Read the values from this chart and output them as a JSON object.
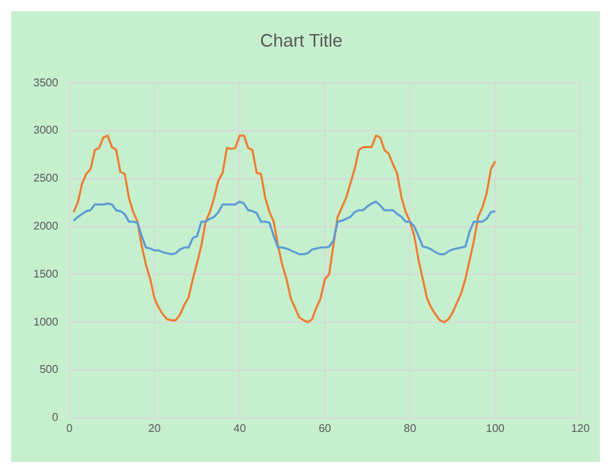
{
  "chart_data": {
    "type": "line",
    "title": "Chart Title",
    "x": [
      1,
      2,
      3,
      4,
      5,
      6,
      7,
      8,
      9,
      10,
      11,
      12,
      13,
      14,
      15,
      16,
      17,
      18,
      19,
      20,
      21,
      22,
      23,
      24,
      25,
      26,
      27,
      28,
      29,
      30,
      31,
      32,
      33,
      34,
      35,
      36,
      37,
      38,
      39,
      40,
      41,
      42,
      43,
      44,
      45,
      46,
      47,
      48,
      49,
      50,
      51,
      52,
      53,
      54,
      55,
      56,
      57,
      58,
      59,
      60,
      61,
      62,
      63,
      64,
      65,
      66,
      67,
      68,
      69,
      70,
      71,
      72,
      73,
      74,
      75,
      76,
      77,
      78,
      79,
      80,
      81,
      82,
      83,
      84,
      85,
      86,
      87,
      88,
      89,
      90,
      91,
      92,
      93,
      94,
      95,
      96,
      97,
      98,
      99,
      100
    ],
    "series": [
      {
        "color": "#5b9bd5",
        "values": [
          2060,
          2100,
          2130,
          2160,
          2170,
          2230,
          2230,
          2230,
          2240,
          2230,
          2170,
          2160,
          2130,
          2050,
          2050,
          2040,
          1900,
          1780,
          1770,
          1750,
          1750,
          1730,
          1720,
          1710,
          1720,
          1760,
          1780,
          1780,
          1880,
          1900,
          2050,
          2050,
          2080,
          2100,
          2150,
          2230,
          2230,
          2230,
          2230,
          2260,
          2240,
          2170,
          2160,
          2140,
          2050,
          2050,
          2040,
          1900,
          1780,
          1780,
          1770,
          1750,
          1730,
          1710,
          1710,
          1720,
          1760,
          1770,
          1780,
          1780,
          1790,
          1850,
          2050,
          2060,
          2080,
          2100,
          2150,
          2170,
          2170,
          2210,
          2240,
          2260,
          2220,
          2170,
          2170,
          2170,
          2130,
          2100,
          2050,
          2050,
          2000,
          1900,
          1790,
          1780,
          1760,
          1730,
          1710,
          1710,
          1740,
          1760,
          1770,
          1780,
          1790,
          1950,
          2050,
          2050,
          2050,
          2080,
          2150,
          2160
        ]
      },
      {
        "color": "#ed7d31",
        "values": [
          2150,
          2250,
          2450,
          2550,
          2600,
          2800,
          2820,
          2930,
          2950,
          2830,
          2800,
          2570,
          2550,
          2300,
          2150,
          2050,
          1800,
          1600,
          1450,
          1250,
          1150,
          1080,
          1030,
          1020,
          1020,
          1080,
          1180,
          1260,
          1450,
          1620,
          1800,
          2050,
          2150,
          2300,
          2480,
          2560,
          2820,
          2810,
          2820,
          2950,
          2950,
          2820,
          2800,
          2560,
          2550,
          2300,
          2150,
          2050,
          1800,
          1600,
          1450,
          1250,
          1150,
          1050,
          1020,
          1000,
          1030,
          1150,
          1250,
          1450,
          1500,
          1800,
          2100,
          2200,
          2300,
          2450,
          2600,
          2800,
          2830,
          2830,
          2830,
          2950,
          2930,
          2800,
          2760,
          2650,
          2550,
          2300,
          2150,
          2050,
          1900,
          1650,
          1450,
          1250,
          1150,
          1080,
          1020,
          1000,
          1030,
          1100,
          1200,
          1300,
          1450,
          1650,
          1850,
          2100,
          2200,
          2350,
          2600,
          2680
        ]
      }
    ],
    "xlim": [
      0,
      120
    ],
    "xticks": [
      0,
      20,
      40,
      60,
      80,
      100,
      120
    ],
    "ylim": [
      0,
      3500
    ],
    "yticks": [
      0,
      500,
      1000,
      1500,
      2000,
      2500,
      3000,
      3500
    ],
    "grid": true,
    "legend": false,
    "marker": "none",
    "line_style": "solid"
  }
}
